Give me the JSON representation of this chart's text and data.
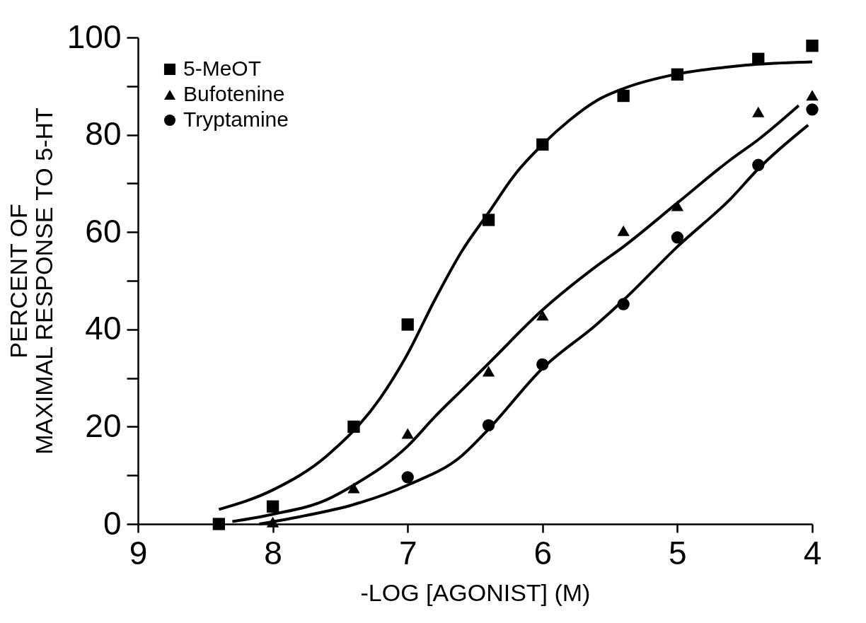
{
  "chart_data": {
    "type": "scatter",
    "xlabel": "-LOG [AGONIST] (M)",
    "ylabel": "PERCENT OF\nMAXIMAL RESPONSE TO 5-HT",
    "xlim": [
      9,
      4
    ],
    "xticks": [
      9,
      8,
      7,
      6,
      5,
      4
    ],
    "ylim": [
      0,
      100
    ],
    "yticks": [
      0,
      {
        "value": 10,
        "label": null
      },
      20,
      {
        "value": 30,
        "label": null
      },
      40,
      {
        "value": 50,
        "label": null
      },
      60,
      {
        "value": 70,
        "label": null
      },
      80,
      {
        "value": 90,
        "label": null
      },
      100
    ],
    "grid": false,
    "legend": "top left",
    "series": [
      {
        "name": "5-MeOT",
        "color": "#000000",
        "marker": "square",
        "x": [
          8.4,
          8.0,
          7.4,
          7.0,
          6.4,
          6.0,
          5.4,
          5.0,
          4.4,
          4.0
        ],
        "values": [
          0,
          3.6,
          20,
          41,
          62.5,
          78,
          88,
          92.4,
          95.6,
          98.3
        ]
      },
      {
        "name": "Bufotenine",
        "color": "#000000",
        "marker": "triangle",
        "x": [
          8.0,
          7.4,
          7.0,
          6.4,
          6.0,
          5.4,
          5.0,
          4.4,
          4.0
        ],
        "values": [
          0.4,
          7.4,
          18.6,
          31.4,
          42.9,
          60.3,
          65.4,
          84.7,
          88.1
        ]
      },
      {
        "name": "Tryptamine",
        "color": "#000000",
        "marker": "circle",
        "x": [
          7.0,
          6.4,
          6.0,
          5.4,
          5.0,
          4.4,
          4.0
        ],
        "values": [
          9.6,
          20.3,
          32.8,
          45.2,
          58.9,
          73.8,
          85.2
        ]
      },
      {
        "type": "line",
        "color": "#000000",
        "marker": "none",
        "x": [
          8.4,
          8.0,
          7.6,
          7.2,
          7.0,
          6.8,
          6.6,
          6.4,
          6.2,
          6.0,
          5.8,
          5.6,
          5.4,
          5.0,
          4.6,
          4.4,
          4.0
        ],
        "values": [
          3,
          7,
          14,
          26,
          35,
          46,
          56,
          64,
          72,
          78,
          83,
          87,
          89.5,
          92.5,
          94,
          94.5,
          95
        ]
      },
      {
        "type": "line",
        "color": "#000000",
        "marker": "none",
        "x": [
          8.3,
          8.0,
          7.6,
          7.4,
          7.0,
          6.8,
          6.6,
          6.4,
          6.0,
          5.6,
          5.4,
          5.0,
          4.6,
          4.4,
          4.1
        ],
        "values": [
          0.5,
          2,
          5,
          8,
          16,
          22,
          27.5,
          33,
          44,
          53,
          57,
          66,
          75,
          79,
          86
        ]
      },
      {
        "type": "line",
        "color": "#000000",
        "marker": "none",
        "x": [
          8.1,
          7.8,
          7.4,
          7.0,
          6.6,
          6.4,
          6.0,
          5.6,
          5.4,
          5.0,
          4.6,
          4.4,
          4.03
        ],
        "values": [
          0,
          1.5,
          4,
          8,
          14,
          19.5,
          32,
          41,
          46,
          57,
          67,
          73,
          82
        ]
      }
    ]
  }
}
